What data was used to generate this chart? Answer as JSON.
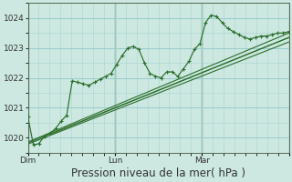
{
  "bg_color": "#cce8e0",
  "grid_color": "#99cccc",
  "line_color": "#2d6e2d",
  "marker_color": "#2d6e2d",
  "xlabel": "Pression niveau de la mer( hPa )",
  "xlabel_fontsize": 8.5,
  "yticks": [
    1020,
    1021,
    1022,
    1023,
    1024
  ],
  "ylim": [
    1019.5,
    1024.5
  ],
  "xlim": [
    0,
    48
  ],
  "vline_positions": [
    0,
    16,
    32,
    48
  ],
  "series_jagged": [
    1020.7,
    1019.75,
    1019.8,
    1020.05,
    1020.15,
    1020.3,
    1020.55,
    1020.75,
    1021.9,
    1021.85,
    1021.8,
    1021.75,
    1021.85,
    1021.95,
    1022.05,
    1022.15,
    1022.45,
    1022.75,
    1023.0,
    1023.05,
    1022.95,
    1022.5,
    1022.15,
    1022.05,
    1022.0,
    1022.2,
    1022.2,
    1022.05,
    1022.3,
    1022.55,
    1022.95,
    1023.15,
    1023.85,
    1024.1,
    1024.05,
    1023.85,
    1023.65,
    1023.55,
    1023.45,
    1023.35,
    1023.3,
    1023.35,
    1023.4,
    1023.4,
    1023.45,
    1023.5,
    1023.5,
    1023.55
  ],
  "series_line1_x": [
    0,
    48
  ],
  "series_line1_y": [
    1019.85,
    1023.5
  ],
  "series_line2_x": [
    0,
    48
  ],
  "series_line2_y": [
    1019.82,
    1023.35
  ],
  "series_line3_x": [
    0,
    48
  ],
  "series_line3_y": [
    1019.78,
    1023.2
  ],
  "series_line4_x": [
    4,
    48
  ],
  "series_line4_y": [
    1020.1,
    1023.35
  ]
}
